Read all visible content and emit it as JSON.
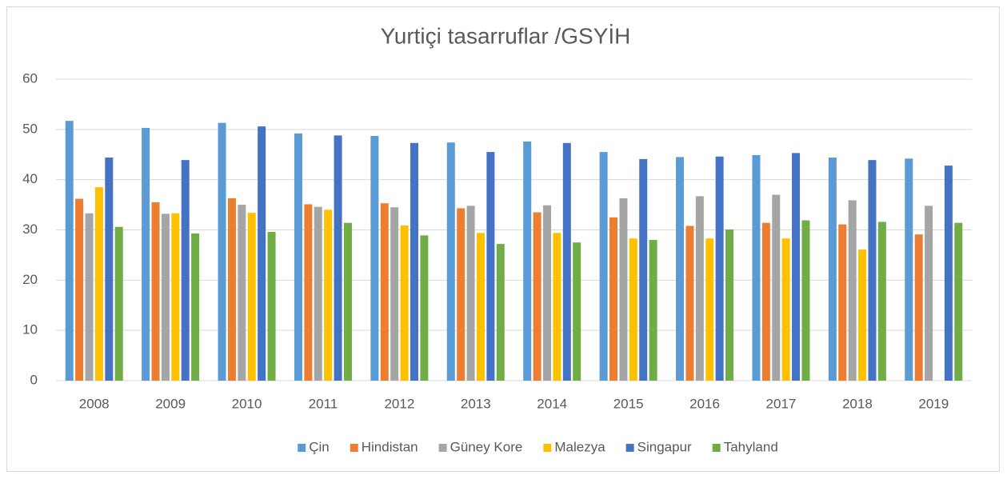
{
  "chart_data": {
    "type": "bar",
    "title": "Yurtiçi tasarruflar /GSYİH",
    "categories": [
      "2008",
      "2009",
      "2010",
      "2011",
      "2012",
      "2013",
      "2014",
      "2015",
      "2016",
      "2017",
      "2018",
      "2019"
    ],
    "series": [
      {
        "name": "Çin",
        "color": "#5b9bd5",
        "values": [
          51.7,
          50.3,
          51.3,
          49.2,
          48.7,
          47.4,
          47.6,
          45.5,
          44.5,
          44.9,
          44.4,
          44.2
        ]
      },
      {
        "name": "Hindistan",
        "color": "#ed7d31",
        "values": [
          36.2,
          35.5,
          36.3,
          35.1,
          35.3,
          34.3,
          33.5,
          32.5,
          30.8,
          31.4,
          31.1,
          29.1
        ]
      },
      {
        "name": "Güney Kore",
        "color": "#a5a5a5",
        "values": [
          33.3,
          33.2,
          35.0,
          34.6,
          34.5,
          34.8,
          34.9,
          36.3,
          36.7,
          37.0,
          35.9,
          34.8
        ]
      },
      {
        "name": "Malezya",
        "color": "#ffc000",
        "values": [
          38.5,
          33.3,
          33.4,
          34.0,
          30.9,
          29.4,
          29.4,
          28.3,
          28.3,
          28.3,
          26.1,
          null
        ]
      },
      {
        "name": "Singapur",
        "color": "#4472c4",
        "values": [
          44.4,
          43.9,
          50.6,
          48.8,
          47.3,
          45.5,
          47.3,
          44.1,
          44.6,
          45.3,
          43.9,
          42.8
        ]
      },
      {
        "name": "Tahyland",
        "color": "#70ad47",
        "values": [
          30.6,
          29.3,
          29.6,
          31.4,
          28.9,
          27.2,
          27.5,
          28.0,
          30.1,
          31.9,
          31.6,
          31.4
        ]
      }
    ],
    "ylim": [
      0,
      60
    ],
    "yticks": [
      0,
      10,
      20,
      30,
      40,
      50,
      60
    ],
    "grid": true,
    "legend": "bottom"
  }
}
